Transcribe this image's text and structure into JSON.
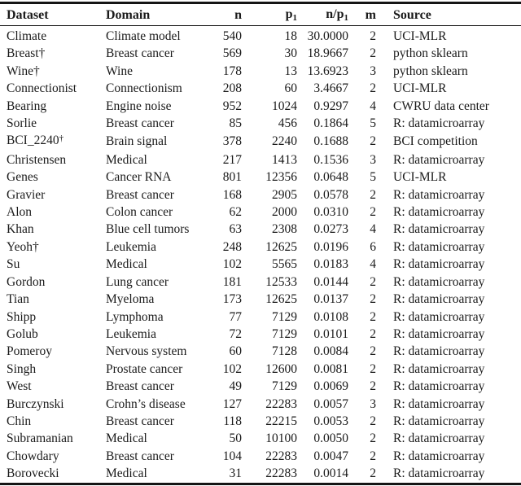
{
  "table": {
    "columns": [
      {
        "key": "dataset",
        "label": "Dataset",
        "align": "left"
      },
      {
        "key": "domain",
        "label": "Domain",
        "align": "left"
      },
      {
        "key": "n",
        "label": "n",
        "align": "right"
      },
      {
        "key": "p1",
        "label": "p",
        "sub": "1",
        "align": "right"
      },
      {
        "key": "ratio",
        "label": "n/p",
        "sub": "1",
        "align": "right"
      },
      {
        "key": "m",
        "label": "m",
        "align": "right"
      },
      {
        "key": "source",
        "label": "Source",
        "align": "left"
      }
    ],
    "rows": [
      {
        "dataset": "Climate",
        "domain": "Climate model",
        "n": "540",
        "p1": "18",
        "ratio": "30.0000",
        "m": "2",
        "source": "UCI-MLR"
      },
      {
        "dataset": "Breast†",
        "domain": "Breast cancer",
        "n": "569",
        "p1": "30",
        "ratio": "18.9667",
        "m": "2",
        "source": "python sklearn"
      },
      {
        "dataset": "Wine†",
        "domain": "Wine",
        "n": "178",
        "p1": "13",
        "ratio": "13.6923",
        "m": "3",
        "source": "python sklearn"
      },
      {
        "dataset": "Connectionist",
        "domain": "Connectionism",
        "n": "208",
        "p1": "60",
        "ratio": "3.4667",
        "m": "2",
        "source": "UCI-MLR"
      },
      {
        "dataset": "Bearing",
        "domain": "Engine noise",
        "n": "952",
        "p1": "1024",
        "ratio": "0.9297",
        "m": "4",
        "source": "CWRU data center"
      },
      {
        "dataset": "Sorlie",
        "domain": "Breast cancer",
        "n": "85",
        "p1": "456",
        "ratio": "0.1864",
        "m": "5",
        "source": "R: datamicroarray"
      },
      {
        "dataset": "BCI_2240",
        "dataset_sup": "†",
        "domain": "Brain signal",
        "n": "378",
        "p1": "2240",
        "ratio": "0.1688",
        "m": "2",
        "source": "BCI competition"
      },
      {
        "dataset": "Christensen",
        "domain": "Medical",
        "n": "217",
        "p1": "1413",
        "ratio": "0.1536",
        "m": "3",
        "source": "R: datamicroarray"
      },
      {
        "dataset": "Genes",
        "domain": "Cancer RNA",
        "n": "801",
        "p1": "12356",
        "ratio": "0.0648",
        "m": "5",
        "source": "UCI-MLR"
      },
      {
        "dataset": "Gravier",
        "domain": "Breast cancer",
        "n": "168",
        "p1": "2905",
        "ratio": "0.0578",
        "m": "2",
        "source": "R: datamicroarray"
      },
      {
        "dataset": "Alon",
        "domain": "Colon cancer",
        "n": "62",
        "p1": "2000",
        "ratio": "0.0310",
        "m": "2",
        "source": "R: datamicroarray"
      },
      {
        "dataset": "Khan",
        "domain": "Blue cell tumors",
        "n": "63",
        "p1": "2308",
        "ratio": "0.0273",
        "m": "4",
        "source": "R: datamicroarray"
      },
      {
        "dataset": "Yeoh†",
        "domain": "Leukemia",
        "n": "248",
        "p1": "12625",
        "ratio": "0.0196",
        "m": "6",
        "source": "R: datamicroarray"
      },
      {
        "dataset": "Su",
        "domain": "Medical",
        "n": "102",
        "p1": "5565",
        "ratio": "0.0183",
        "m": "4",
        "source": "R: datamicroarray"
      },
      {
        "dataset": "Gordon",
        "domain": "Lung cancer",
        "n": "181",
        "p1": "12533",
        "ratio": "0.0144",
        "m": "2",
        "source": "R: datamicroarray"
      },
      {
        "dataset": "Tian",
        "domain": "Myeloma",
        "n": "173",
        "p1": "12625",
        "ratio": "0.0137",
        "m": "2",
        "source": "R: datamicroarray"
      },
      {
        "dataset": "Shipp",
        "domain": "Lymphoma",
        "n": "77",
        "p1": "7129",
        "ratio": "0.0108",
        "m": "2",
        "source": "R: datamicroarray"
      },
      {
        "dataset": "Golub",
        "domain": "Leukemia",
        "n": "72",
        "p1": "7129",
        "ratio": "0.0101",
        "m": "2",
        "source": "R: datamicroarray"
      },
      {
        "dataset": "Pomeroy",
        "domain": "Nervous system",
        "n": "60",
        "p1": "7128",
        "ratio": "0.0084",
        "m": "2",
        "source": "R: datamicroarray"
      },
      {
        "dataset": "Singh",
        "domain": "Prostate cancer",
        "n": "102",
        "p1": "12600",
        "ratio": "0.0081",
        "m": "2",
        "source": "R: datamicroarray"
      },
      {
        "dataset": "West",
        "domain": "Breast cancer",
        "n": "49",
        "p1": "7129",
        "ratio": "0.0069",
        "m": "2",
        "source": "R: datamicroarray"
      },
      {
        "dataset": "Burczynski",
        "domain": "Crohn’s disease",
        "n": "127",
        "p1": "22283",
        "ratio": "0.0057",
        "m": "3",
        "source": "R: datamicroarray"
      },
      {
        "dataset": "Chin",
        "domain": "Breast cancer",
        "n": "118",
        "p1": "22215",
        "ratio": "0.0053",
        "m": "2",
        "source": "R: datamicroarray"
      },
      {
        "dataset": "Subramanian",
        "domain": "Medical",
        "n": "50",
        "p1": "10100",
        "ratio": "0.0050",
        "m": "2",
        "source": "R: datamicroarray"
      },
      {
        "dataset": "Chowdary",
        "domain": "Breast cancer",
        "n": "104",
        "p1": "22283",
        "ratio": "0.0047",
        "m": "2",
        "source": "R: datamicroarray"
      },
      {
        "dataset": "Borovecki",
        "domain": "Medical",
        "n": "31",
        "p1": "22283",
        "ratio": "0.0014",
        "m": "2",
        "source": "R: datamicroarray"
      }
    ]
  }
}
